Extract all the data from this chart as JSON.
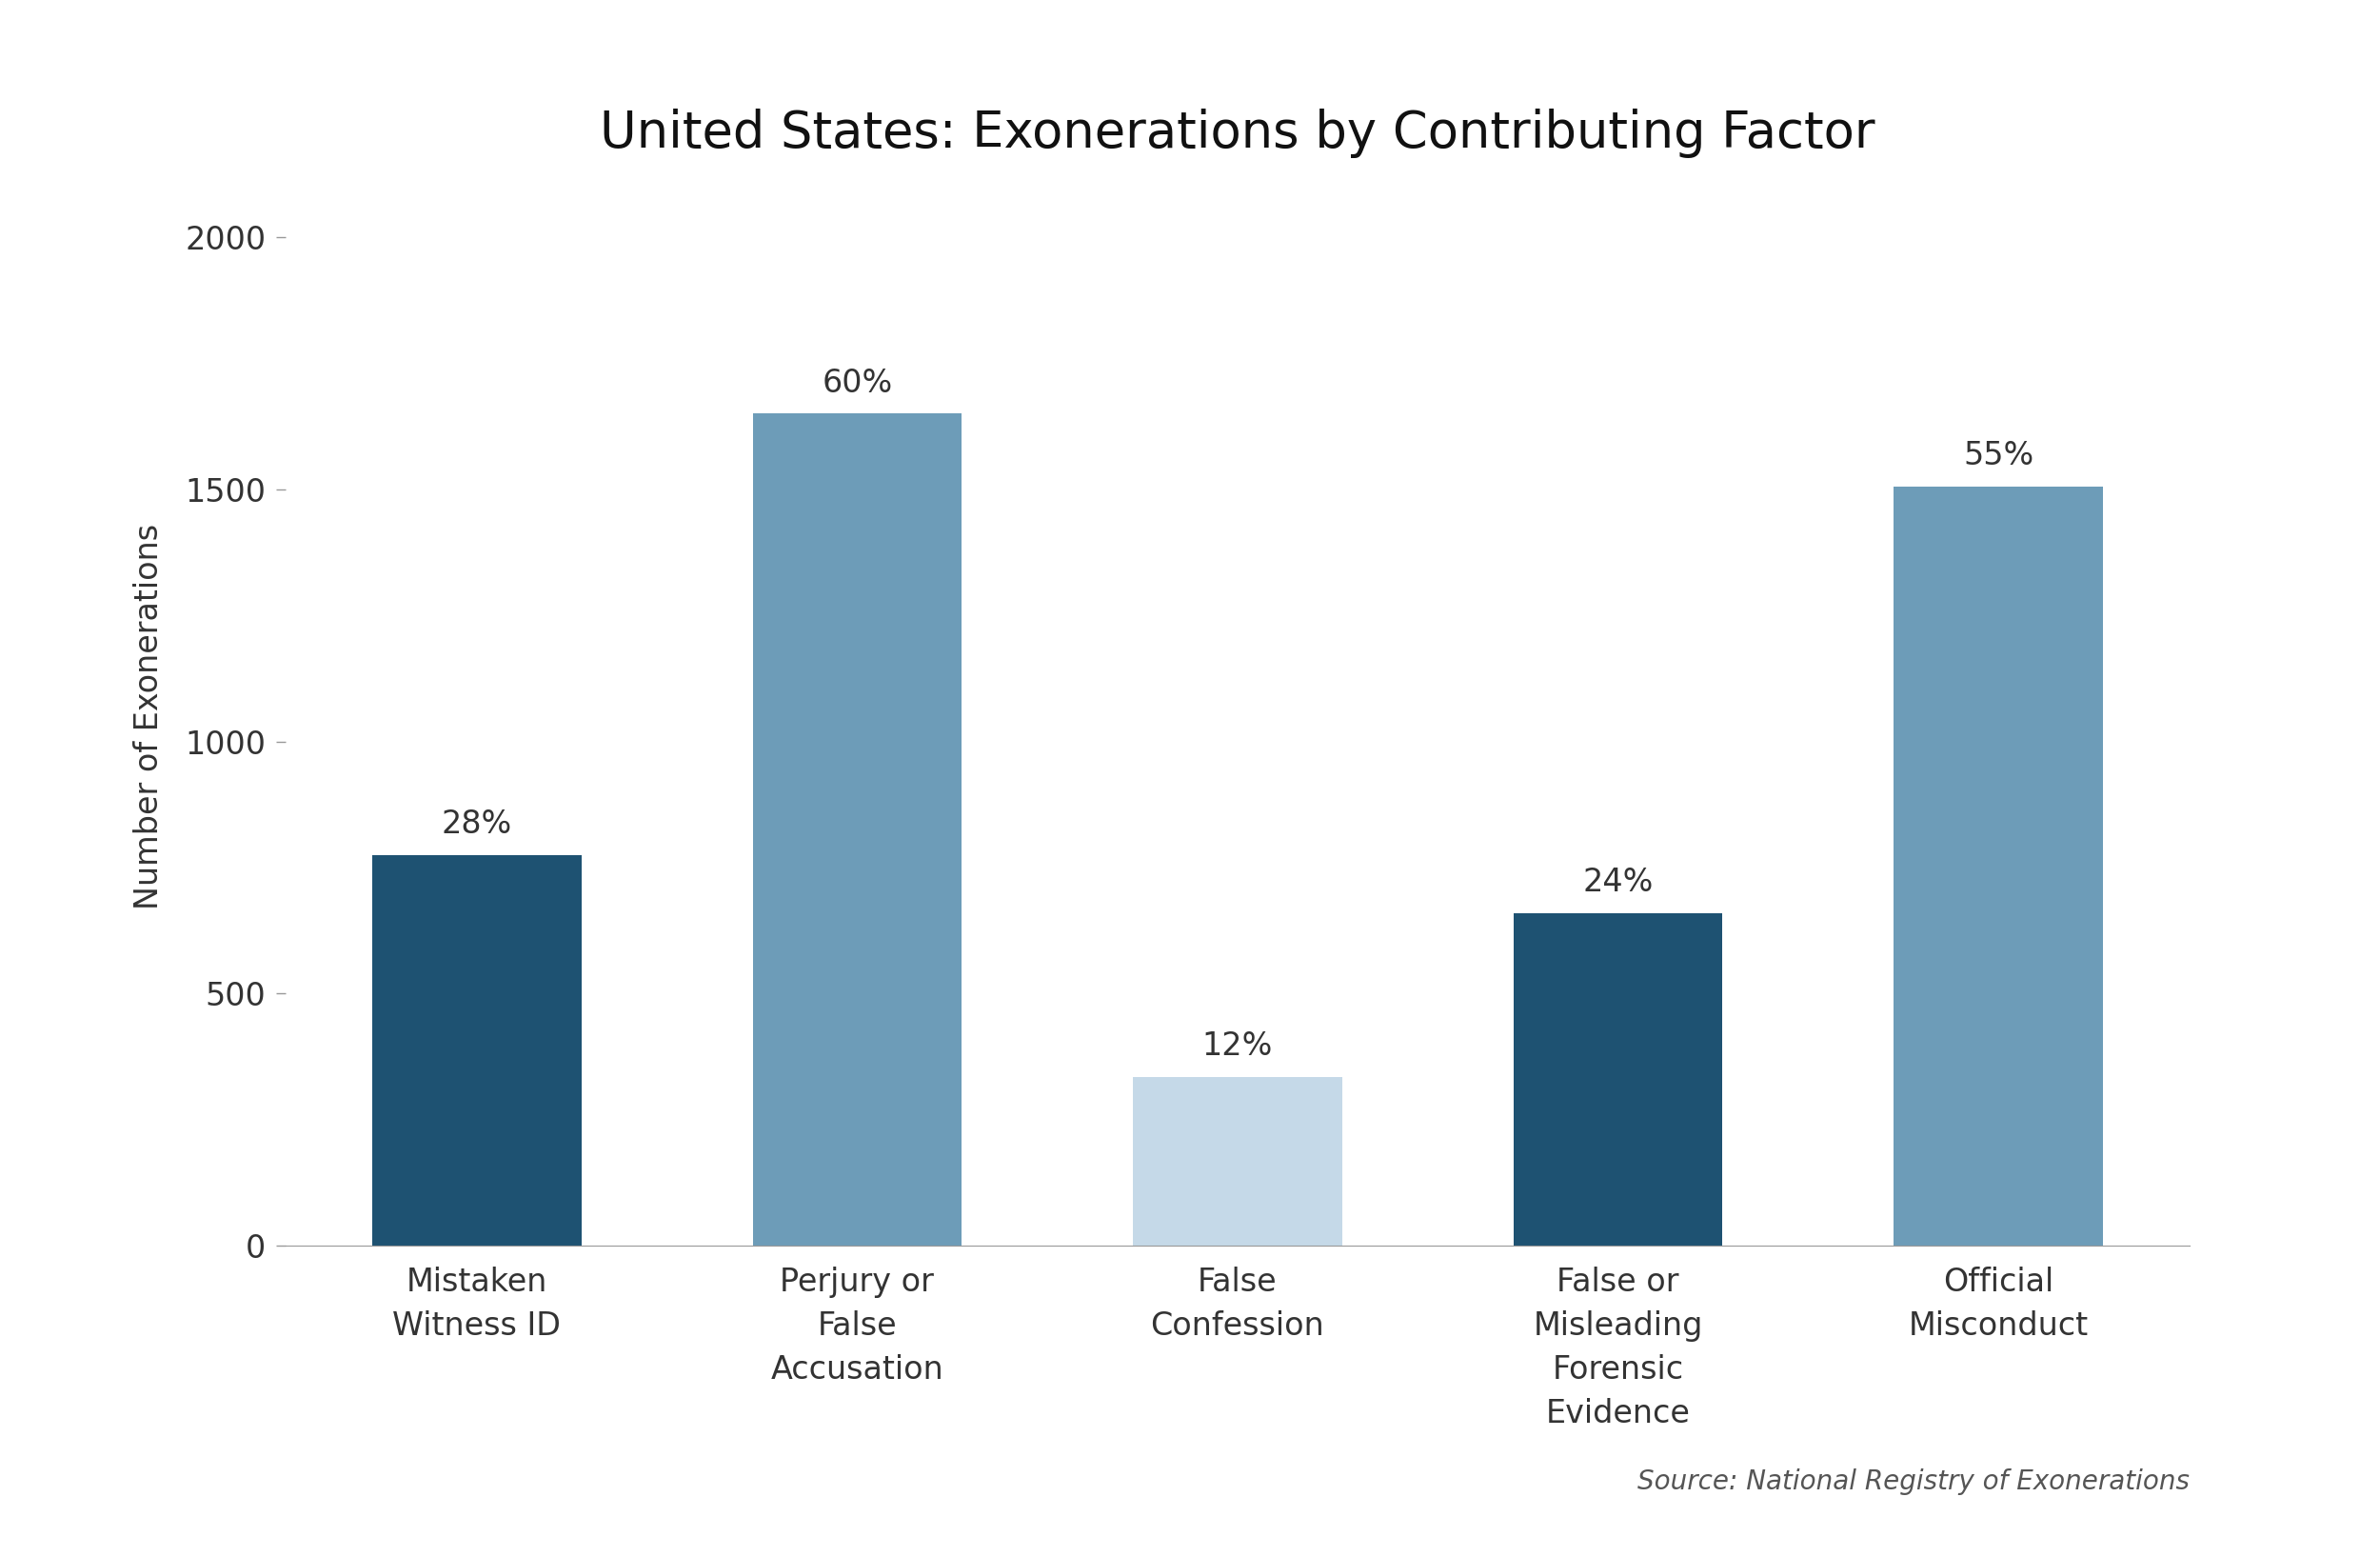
{
  "title": "United States: Exonerations by Contributing Factor",
  "categories": [
    "Mistaken\nWitness ID",
    "Perjury or\nFalse\nAccusation",
    "False\nConfession",
    "False or\nMisleading\nForensic\nEvidence",
    "Official\nMisconduct"
  ],
  "values": [
    775,
    1650,
    335,
    660,
    1505
  ],
  "percentages": [
    "28%",
    "60%",
    "12%",
    "24%",
    "55%"
  ],
  "bar_colors": [
    "#1e5272",
    "#6d9cb8",
    "#c5d9e8",
    "#1e5272",
    "#6d9cb8"
  ],
  "ylabel": "Number of Exonerations",
  "yticks": [
    0,
    500,
    1000,
    1500,
    2000
  ],
  "ylim": [
    0,
    2100
  ],
  "source": "Source: National Registry of Exonerations",
  "background_color": "#ffffff",
  "title_fontsize": 38,
  "label_fontsize": 24,
  "tick_fontsize": 24,
  "annotation_fontsize": 24,
  "source_fontsize": 20
}
